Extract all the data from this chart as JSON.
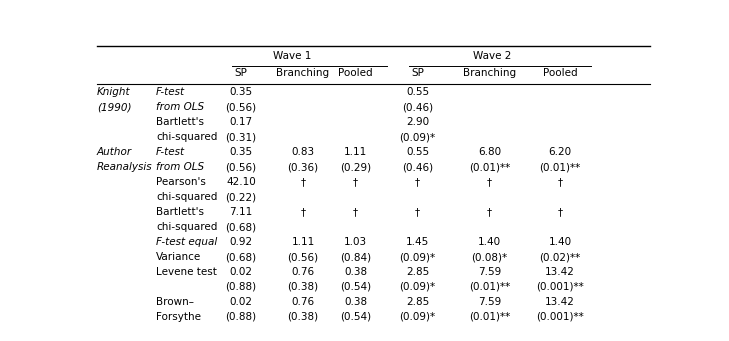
{
  "background": "#ffffff",
  "text_color": "#000000",
  "font_size": 7.5,
  "figsize": [
    7.29,
    3.41
  ],
  "dpi": 100,
  "col_x": {
    "group": 0.01,
    "sub": 0.115,
    "sp1": 0.265,
    "br1": 0.375,
    "po1": 0.468,
    "sp2": 0.578,
    "br2": 0.705,
    "po2": 0.83
  },
  "wave1_label": "Wave 1",
  "wave2_label": "Wave 2",
  "sub_headers": [
    "SP",
    "Branching",
    "Pooled",
    "SP",
    "Branching",
    "Pooled"
  ],
  "row_data": [
    [
      "Knight",
      "(1990)",
      "F-test",
      "0.35",
      "",
      "",
      "0.55",
      "",
      ""
    ],
    [
      "",
      "",
      "from OLS",
      "(0.56)",
      "",
      "",
      "(0.46)",
      "",
      ""
    ],
    [
      "",
      "",
      "Bartlett's",
      "0.17",
      "",
      "",
      "2.90",
      "",
      ""
    ],
    [
      "",
      "",
      "chi-squared",
      "(0.31)",
      "",
      "",
      "(0.09)*",
      "",
      ""
    ],
    [
      "Author",
      "Reanalysis",
      "F-test",
      "0.35",
      "0.83",
      "1.11",
      "0.55",
      "6.80",
      "6.20"
    ],
    [
      "",
      "",
      "from OLS",
      "(0.56)",
      "(0.36)",
      "(0.29)",
      "(0.46)",
      "(0.01)**",
      "(0.01)**"
    ],
    [
      "",
      "",
      "Pearson's",
      "42.10",
      "†",
      "†",
      "†",
      "†",
      "†"
    ],
    [
      "",
      "",
      "chi-squared",
      "(0.22)",
      "",
      "",
      "",
      "",
      ""
    ],
    [
      "",
      "",
      "Bartlett's",
      "7.11",
      "†",
      "†",
      "†",
      "†",
      "†"
    ],
    [
      "",
      "",
      "chi-squared",
      "(0.68)",
      "",
      "",
      "",
      "",
      ""
    ],
    [
      "",
      "",
      "F-test equal",
      "0.92",
      "1.11",
      "1.03",
      "1.45",
      "1.40",
      "1.40"
    ],
    [
      "",
      "",
      "Variance",
      "(0.68)",
      "(0.56)",
      "(0.84)",
      "(0.09)*",
      "(0.08)*",
      "(0.02)**"
    ],
    [
      "",
      "",
      "Levene test",
      "0.02",
      "0.76",
      "0.38",
      "2.85",
      "7.59",
      "13.42"
    ],
    [
      "",
      "",
      "",
      "(0.88)",
      "(0.38)",
      "(0.54)",
      "(0.09)*",
      "(0.01)**",
      "(0.001)**"
    ],
    [
      "",
      "",
      "Brown–",
      "0.02",
      "0.76",
      "0.38",
      "2.85",
      "7.59",
      "13.42"
    ],
    [
      "",
      "",
      "Forsythe",
      "(0.88)",
      "(0.38)",
      "(0.54)",
      "(0.09)*",
      "(0.01)**",
      "(0.001)**"
    ]
  ]
}
